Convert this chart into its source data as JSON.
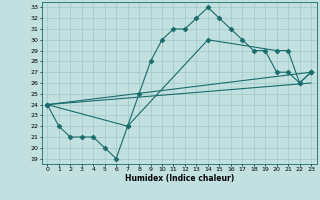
{
  "xlabel": "Humidex (Indice chaleur)",
  "bg_color": "#c2e0e0",
  "line_color": "#1a6b6b",
  "grid_color": "#9fc8c8",
  "xlim": [
    -0.5,
    23.5
  ],
  "ylim": [
    18.5,
    33.5
  ],
  "xticks": [
    0,
    1,
    2,
    3,
    4,
    5,
    6,
    7,
    8,
    9,
    10,
    11,
    12,
    13,
    14,
    15,
    16,
    17,
    18,
    19,
    20,
    21,
    22,
    23
  ],
  "yticks": [
    19,
    20,
    21,
    22,
    23,
    24,
    25,
    26,
    27,
    28,
    29,
    30,
    31,
    32,
    33
  ],
  "line1": {
    "x": [
      0,
      1,
      2,
      3,
      4,
      5,
      6,
      7,
      8,
      9,
      10,
      11,
      12,
      13,
      14,
      15,
      16,
      17,
      18,
      19,
      20,
      21,
      22,
      23
    ],
    "y": [
      24,
      22,
      21,
      21,
      21,
      20,
      19,
      22,
      25,
      28,
      30,
      31,
      31,
      32,
      33,
      32,
      31,
      30,
      29,
      29,
      27,
      27,
      26,
      27
    ]
  },
  "line2": {
    "x": [
      0,
      7,
      14,
      20,
      21,
      22,
      23
    ],
    "y": [
      24,
      22,
      30,
      29,
      29,
      26,
      27
    ]
  },
  "line3": {
    "x": [
      0,
      23
    ],
    "y": [
      24,
      27
    ]
  },
  "line4": {
    "x": [
      0,
      23
    ],
    "y": [
      24,
      26
    ]
  }
}
